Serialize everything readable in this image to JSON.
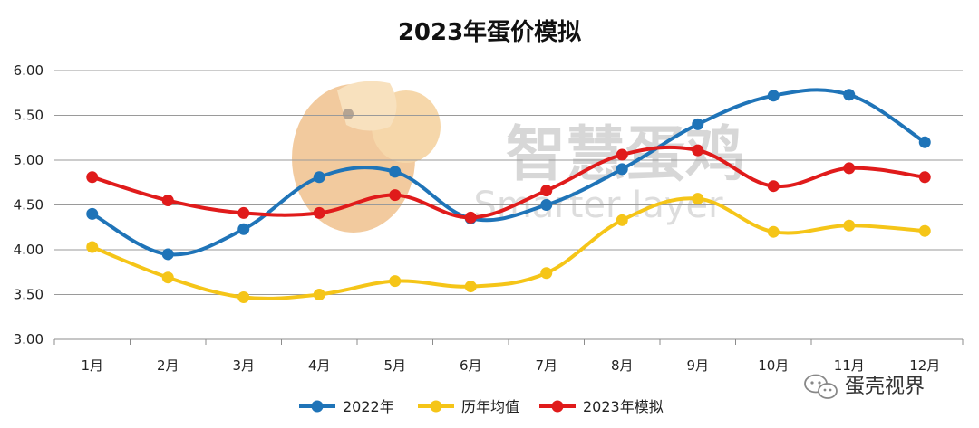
{
  "chart_data": {
    "type": "line",
    "title": "2023年蛋价模拟",
    "categories": [
      "1月",
      "2月",
      "3月",
      "4月",
      "5月",
      "6月",
      "7月",
      "8月",
      "9月",
      "10月",
      "11月",
      "12月"
    ],
    "ylim": [
      3.0,
      6.0
    ],
    "yticks": [
      "3.00",
      "3.50",
      "4.00",
      "4.50",
      "5.00",
      "5.50",
      "6.00"
    ],
    "grid": true,
    "legend_position": "bottom",
    "series": [
      {
        "name": "2022年",
        "color": "#1f74b8",
        "values": [
          4.4,
          3.95,
          4.23,
          4.81,
          4.87,
          4.35,
          4.5,
          4.9,
          5.4,
          5.72,
          5.73,
          5.2
        ]
      },
      {
        "name": "历年均值",
        "color": "#f5c518",
        "values": [
          4.03,
          3.69,
          3.47,
          3.5,
          3.65,
          3.59,
          3.74,
          4.33,
          4.57,
          4.2,
          4.27,
          4.21
        ]
      },
      {
        "name": "2023年模拟",
        "color": "#e01b1b",
        "values": [
          4.81,
          4.55,
          4.41,
          4.41,
          4.61,
          4.36,
          4.66,
          5.06,
          5.11,
          4.71,
          4.91,
          4.81
        ]
      }
    ]
  },
  "watermark": {
    "text": "智慧蛋鸡",
    "subtext": "Smarter layer"
  },
  "corner_label": "蛋壳视界"
}
